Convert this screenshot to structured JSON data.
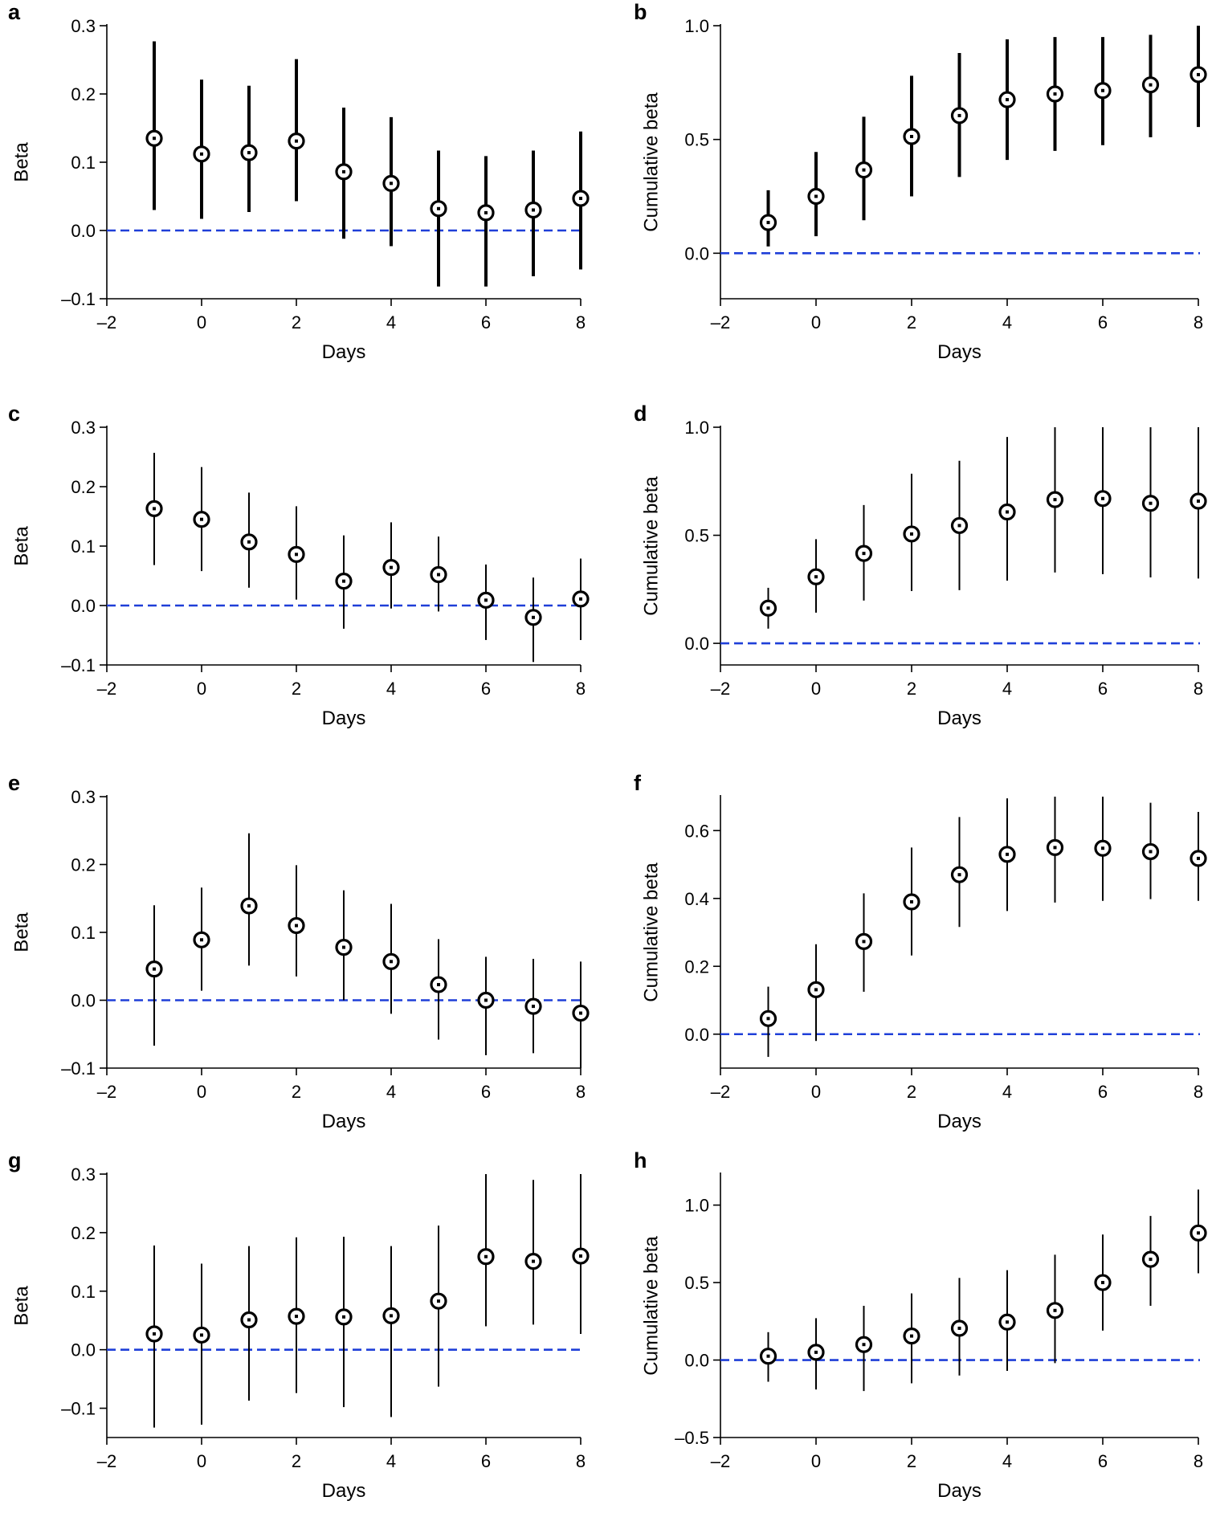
{
  "figure_title": "",
  "colors": {
    "zero_line": "#1f3fd8",
    "marks": "#000000",
    "background": "#ffffff"
  },
  "chart_data": [
    {
      "panel": "a",
      "type": "scatter",
      "title": "",
      "xlabel": "Days",
      "ylabel": "Beta",
      "xlim": [
        -2,
        8
      ],
      "ylim": [
        -0.1,
        0.3
      ],
      "xticks": [
        -2,
        0,
        2,
        4,
        6,
        8
      ],
      "xtick_labels": [
        "–2",
        "0",
        "2",
        "4",
        "6",
        "8"
      ],
      "yticks": [
        -0.1,
        0.0,
        0.1,
        0.2,
        0.3
      ],
      "ytick_labels": [
        "–0.1",
        "0.0",
        "0.1",
        "0.2",
        "0.3"
      ],
      "reference_line": 0,
      "x": [
        -1,
        0,
        1,
        2,
        3,
        4,
        5,
        6,
        7,
        8
      ],
      "values": [
        0.135,
        0.112,
        0.114,
        0.131,
        0.086,
        0.069,
        0.032,
        0.026,
        0.03,
        0.047
      ],
      "lower": [
        0.03,
        0.017,
        0.027,
        0.043,
        -0.012,
        -0.023,
        -0.082,
        -0.082,
        -0.067,
        -0.057
      ],
      "upper": [
        0.277,
        0.221,
        0.212,
        0.251,
        0.18,
        0.166,
        0.117,
        0.109,
        0.117,
        0.145
      ]
    },
    {
      "panel": "b",
      "type": "scatter",
      "title": "",
      "xlabel": "Days",
      "ylabel": "Cumulative beta",
      "xlim": [
        -2,
        8
      ],
      "ylim": [
        -0.2,
        1.0
      ],
      "xticks": [
        -2,
        0,
        2,
        4,
        6,
        8
      ],
      "xtick_labels": [
        "–2",
        "0",
        "2",
        "4",
        "6",
        "8"
      ],
      "yticks": [
        0.0,
        0.5,
        1.0
      ],
      "ytick_labels": [
        "0.0",
        "0.5",
        "1.0"
      ],
      "reference_line": 0,
      "x": [
        -1,
        0,
        1,
        2,
        3,
        4,
        5,
        6,
        7,
        8
      ],
      "values": [
        0.135,
        0.25,
        0.366,
        0.513,
        0.605,
        0.675,
        0.7,
        0.715,
        0.74,
        0.785
      ],
      "lower": [
        0.03,
        0.075,
        0.145,
        0.25,
        0.335,
        0.41,
        0.45,
        0.475,
        0.51,
        0.555
      ],
      "upper": [
        0.277,
        0.445,
        0.6,
        0.78,
        0.88,
        0.94,
        0.95,
        0.95,
        0.96,
        1.0
      ]
    },
    {
      "panel": "c",
      "type": "scatter",
      "title": "",
      "xlabel": "Days",
      "ylabel": "Beta",
      "xlim": [
        -2,
        8
      ],
      "ylim": [
        -0.1,
        0.3
      ],
      "xticks": [
        -2,
        0,
        2,
        4,
        6,
        8
      ],
      "xtick_labels": [
        "–2",
        "0",
        "2",
        "4",
        "6",
        "8"
      ],
      "yticks": [
        -0.1,
        0.0,
        0.1,
        0.2,
        0.3
      ],
      "ytick_labels": [
        "–0.1",
        "0.0",
        "0.1",
        "0.2",
        "0.3"
      ],
      "reference_line": 0,
      "x": [
        -1,
        0,
        1,
        2,
        3,
        4,
        5,
        6,
        7,
        8
      ],
      "values": [
        0.163,
        0.145,
        0.107,
        0.086,
        0.041,
        0.064,
        0.052,
        0.009,
        -0.02,
        0.011
      ],
      "lower": [
        0.068,
        0.058,
        0.03,
        0.01,
        -0.039,
        -0.005,
        -0.01,
        -0.058,
        -0.095,
        -0.058
      ],
      "upper": [
        0.257,
        0.233,
        0.19,
        0.167,
        0.118,
        0.14,
        0.116,
        0.069,
        0.047,
        0.079
      ]
    },
    {
      "panel": "d",
      "type": "scatter",
      "title": "",
      "xlabel": "Days",
      "ylabel": "Cumulative beta",
      "xlim": [
        -2,
        8
      ],
      "ylim": [
        -0.1,
        1.0
      ],
      "xticks": [
        -2,
        0,
        2,
        4,
        6,
        8
      ],
      "xtick_labels": [
        "–2",
        "0",
        "2",
        "4",
        "6",
        "8"
      ],
      "yticks": [
        0.0,
        0.5,
        1.0
      ],
      "ytick_labels": [
        "0.0",
        "0.5",
        "1.0"
      ],
      "reference_line": 0,
      "x": [
        -1,
        0,
        1,
        2,
        3,
        4,
        5,
        6,
        7,
        8
      ],
      "values": [
        0.163,
        0.308,
        0.416,
        0.506,
        0.545,
        0.608,
        0.665,
        0.67,
        0.648,
        0.658
      ],
      "lower": [
        0.068,
        0.142,
        0.198,
        0.242,
        0.246,
        0.29,
        0.328,
        0.32,
        0.305,
        0.3
      ],
      "upper": [
        0.257,
        0.482,
        0.64,
        0.785,
        0.845,
        0.955,
        1.0,
        1.0,
        1.0,
        1.0
      ]
    },
    {
      "panel": "e",
      "type": "scatter",
      "title": "",
      "xlabel": "Days",
      "ylabel": "Beta",
      "xlim": [
        -2,
        8
      ],
      "ylim": [
        -0.1,
        0.3
      ],
      "xticks": [
        -2,
        0,
        2,
        4,
        6,
        8
      ],
      "xtick_labels": [
        "–2",
        "0",
        "2",
        "4",
        "6",
        "8"
      ],
      "yticks": [
        -0.1,
        0.0,
        0.1,
        0.2,
        0.3
      ],
      "ytick_labels": [
        "–0.1",
        "0.0",
        "0.1",
        "0.2",
        "0.3"
      ],
      "reference_line": 0,
      "x": [
        -1,
        0,
        1,
        2,
        3,
        4,
        5,
        6,
        7,
        8
      ],
      "values": [
        0.046,
        0.089,
        0.139,
        0.11,
        0.078,
        0.057,
        0.023,
        0.0,
        -0.009,
        -0.019
      ],
      "lower": [
        -0.067,
        0.014,
        0.051,
        0.035,
        0.0,
        -0.02,
        -0.058,
        -0.081,
        -0.078,
        -0.1
      ],
      "upper": [
        0.14,
        0.166,
        0.246,
        0.199,
        0.162,
        0.142,
        0.09,
        0.064,
        0.061,
        0.057
      ]
    },
    {
      "panel": "f",
      "type": "scatter",
      "title": "",
      "xlabel": "Days",
      "ylabel": "Cumulative beta",
      "xlim": [
        -2,
        8
      ],
      "ylim": [
        -0.1,
        0.7
      ],
      "xticks": [
        -2,
        0,
        2,
        4,
        6,
        8
      ],
      "xtick_labels": [
        "–2",
        "0",
        "2",
        "4",
        "6",
        "8"
      ],
      "yticks": [
        0.0,
        0.2,
        0.4,
        0.6
      ],
      "ytick_labels": [
        "0.0",
        "0.2",
        "0.4",
        "0.6"
      ],
      "reference_line": 0,
      "x": [
        -1,
        0,
        1,
        2,
        3,
        4,
        5,
        6,
        7,
        8
      ],
      "values": [
        0.046,
        0.131,
        0.273,
        0.39,
        0.47,
        0.53,
        0.55,
        0.548,
        0.538,
        0.518
      ],
      "lower": [
        -0.067,
        -0.02,
        0.125,
        0.232,
        0.316,
        0.363,
        0.388,
        0.393,
        0.398,
        0.393
      ],
      "upper": [
        0.14,
        0.265,
        0.415,
        0.55,
        0.64,
        0.695,
        0.7,
        0.7,
        0.682,
        0.655
      ]
    },
    {
      "panel": "g",
      "type": "scatter",
      "title": "",
      "xlabel": "Days",
      "ylabel": "Beta",
      "xlim": [
        -2,
        8
      ],
      "ylim": [
        -0.15,
        0.3
      ],
      "xticks": [
        -2,
        0,
        2,
        4,
        6,
        8
      ],
      "xtick_labels": [
        "–2",
        "0",
        "2",
        "4",
        "6",
        "8"
      ],
      "yticks": [
        -0.1,
        0.0,
        0.1,
        0.2,
        0.3
      ],
      "ytick_labels": [
        "–0.1",
        "0.0",
        "0.1",
        "0.2",
        "0.3"
      ],
      "reference_line": 0,
      "x": [
        -1,
        0,
        1,
        2,
        3,
        4,
        5,
        6,
        7,
        8
      ],
      "values": [
        0.027,
        0.025,
        0.051,
        0.057,
        0.056,
        0.058,
        0.083,
        0.159,
        0.151,
        0.16
      ],
      "lower": [
        -0.133,
        -0.128,
        -0.087,
        -0.074,
        -0.098,
        -0.115,
        -0.063,
        0.04,
        0.043,
        0.027
      ],
      "upper": [
        0.178,
        0.147,
        0.177,
        0.192,
        0.193,
        0.177,
        0.212,
        0.3,
        0.29,
        0.3
      ]
    },
    {
      "panel": "h",
      "type": "scatter",
      "title": "",
      "xlabel": "Days",
      "ylabel": "Cumulative beta",
      "xlim": [
        -2,
        8
      ],
      "ylim": [
        -0.5,
        1.2
      ],
      "xticks": [
        -2,
        0,
        2,
        4,
        6,
        8
      ],
      "xtick_labels": [
        "–2",
        "0",
        "2",
        "4",
        "6",
        "8"
      ],
      "yticks": [
        -0.5,
        0.0,
        0.5,
        1.0
      ],
      "ytick_labels": [
        "–0.5",
        "0.0",
        "0.5",
        "1.0"
      ],
      "reference_line": 0,
      "x": [
        -1,
        0,
        1,
        2,
        3,
        4,
        5,
        6,
        7,
        8
      ],
      "values": [
        0.025,
        0.05,
        0.1,
        0.155,
        0.205,
        0.245,
        0.32,
        0.5,
        0.65,
        0.82
      ],
      "lower": [
        -0.14,
        -0.19,
        -0.2,
        -0.15,
        -0.1,
        -0.07,
        -0.02,
        0.19,
        0.35,
        0.56
      ],
      "upper": [
        0.18,
        0.27,
        0.35,
        0.43,
        0.53,
        0.58,
        0.68,
        0.81,
        0.93,
        1.1
      ]
    }
  ]
}
